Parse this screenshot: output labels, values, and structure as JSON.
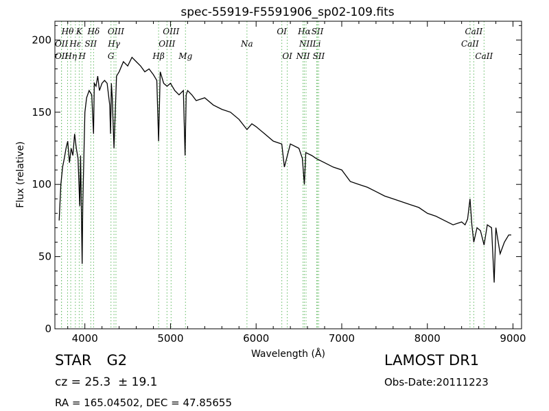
{
  "chart_data": {
    "type": "line",
    "title": "spec-55919-F5591906_sp02-109.fits",
    "xlabel": "Wavelength (Å)",
    "ylabel": "Flux (relative)",
    "xlim": [
      3650,
      9100
    ],
    "ylim": [
      0,
      213
    ],
    "xticks": [
      4000,
      5000,
      6000,
      7000,
      8000,
      9000
    ],
    "yticks": [
      0,
      50,
      100,
      150,
      200
    ],
    "grid": false,
    "line_color": "#000000",
    "marker_color": "#5cb85c",
    "spectrum": {
      "x": [
        3700,
        3720,
        3740,
        3760,
        3780,
        3800,
        3820,
        3840,
        3860,
        3880,
        3900,
        3920,
        3940,
        3950,
        3968,
        3975,
        4000,
        4020,
        4050,
        4080,
        4101,
        4110,
        4130,
        4150,
        4170,
        4200,
        4230,
        4260,
        4290,
        4300,
        4310,
        4320,
        4340,
        4370,
        4400,
        4450,
        4500,
        4550,
        4600,
        4650,
        4700,
        4750,
        4800,
        4840,
        4861,
        4880,
        4920,
        4960,
        5000,
        5050,
        5100,
        5150,
        5170,
        5183,
        5200,
        5250,
        5300,
        5400,
        5500,
        5600,
        5700,
        5800,
        5893,
        5950,
        6000,
        6100,
        6200,
        6300,
        6330,
        6400,
        6500,
        6540,
        6563,
        6580,
        6650,
        6700,
        6800,
        6900,
        7000,
        7100,
        7200,
        7300,
        7400,
        7500,
        7600,
        7700,
        7800,
        7900,
        8000,
        8100,
        8200,
        8300,
        8400,
        8440,
        8470,
        8498,
        8520,
        8542,
        8580,
        8620,
        8662,
        8700,
        8750,
        8780,
        8800,
        8850,
        8900,
        8950,
        8980
      ],
      "y": [
        75,
        100,
        112,
        118,
        125,
        130,
        115,
        125,
        120,
        135,
        125,
        118,
        85,
        120,
        45,
        85,
        150,
        160,
        165,
        162,
        135,
        170,
        168,
        175,
        165,
        170,
        172,
        170,
        155,
        135,
        170,
        160,
        125,
        175,
        178,
        185,
        182,
        188,
        185,
        182,
        178,
        180,
        176,
        172,
        130,
        178,
        170,
        168,
        170,
        165,
        162,
        165,
        120,
        162,
        165,
        162,
        158,
        160,
        155,
        152,
        150,
        145,
        138,
        142,
        140,
        135,
        130,
        128,
        112,
        128,
        125,
        118,
        100,
        122,
        120,
        118,
        115,
        112,
        110,
        102,
        100,
        98,
        95,
        92,
        90,
        88,
        86,
        84,
        80,
        78,
        75,
        72,
        74,
        72,
        76,
        90,
        72,
        60,
        70,
        68,
        58,
        72,
        70,
        32,
        70,
        52,
        60,
        65,
        65
      ]
    },
    "line_markers": [
      {
        "label": "Hθ",
        "x": 3798,
        "row": 0
      },
      {
        "label": "OII",
        "x": 3727,
        "row": 1
      },
      {
        "label": "OII",
        "x": 3727,
        "row": 2
      },
      {
        "label": "Hη",
        "x": 3835,
        "row": 2
      },
      {
        "label": "Hε",
        "x": 3889,
        "row": 1
      },
      {
        "label": "K",
        "x": 3934,
        "row": 0
      },
      {
        "label": "SII",
        "x": 4069,
        "row": 1
      },
      {
        "label": "H",
        "x": 3968,
        "row": 2
      },
      {
        "label": "Hδ",
        "x": 4102,
        "row": 0
      },
      {
        "label": "OIII",
        "x": 4363,
        "row": 0
      },
      {
        "label": "Hγ",
        "x": 4340,
        "row": 1
      },
      {
        "label": "G",
        "x": 4305,
        "row": 2
      },
      {
        "label": "OIII",
        "x": 5007,
        "row": 0
      },
      {
        "label": "OIII",
        "x": 4959,
        "row": 1
      },
      {
        "label": "Hβ",
        "x": 4861,
        "row": 2
      },
      {
        "label": "Mg",
        "x": 5175,
        "row": 2
      },
      {
        "label": "Na",
        "x": 5893,
        "row": 1
      },
      {
        "label": "OI",
        "x": 6300,
        "row": 0
      },
      {
        "label": "OI",
        "x": 6364,
        "row": 2
      },
      {
        "label": "Hα",
        "x": 6563,
        "row": 0
      },
      {
        "label": "SII",
        "x": 6716,
        "row": 0
      },
      {
        "label": "NII",
        "x": 6583,
        "row": 1
      },
      {
        "label": "Li",
        "x": 6708,
        "row": 1
      },
      {
        "label": "NII",
        "x": 6548,
        "row": 2
      },
      {
        "label": "SII",
        "x": 6731,
        "row": 2
      },
      {
        "label": "CaII",
        "x": 8542,
        "row": 0
      },
      {
        "label": "CaII",
        "x": 8498,
        "row": 1
      },
      {
        "label": "CaII",
        "x": 8662,
        "row": 2
      }
    ]
  },
  "info": {
    "class": "STAR",
    "subclass": "G2",
    "cz": "cz = 25.3  ± 19.1",
    "radec": "RA = 165.04502, DEC = 47.85655",
    "survey": "LAMOST DR1",
    "obs_date": "Obs-Date:20111223"
  }
}
